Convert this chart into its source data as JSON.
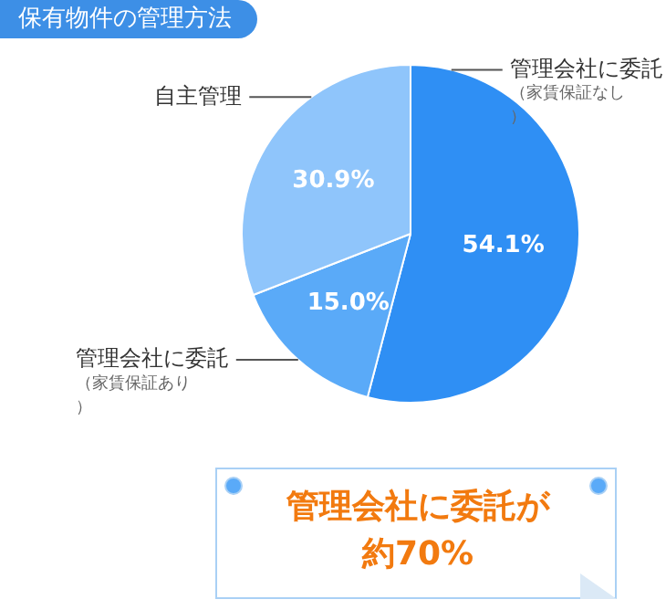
{
  "chart_data": {
    "type": "pie",
    "title": "保有物件の管理方法",
    "categories": [
      "管理会社に委託（家賃保証なし）",
      "管理会社に委託（家賃保証あり）",
      "自主管理"
    ],
    "values": [
      54.1,
      15.0,
      30.9
    ],
    "value_labels": [
      "54.1%",
      "15.0%",
      "30.9%"
    ],
    "colors": [
      "#2f8ff4",
      "#5aaaf8",
      "#8fc5fb"
    ],
    "legend": false,
    "annotations": [
      "管理会社に委託が約70%"
    ]
  }
}
